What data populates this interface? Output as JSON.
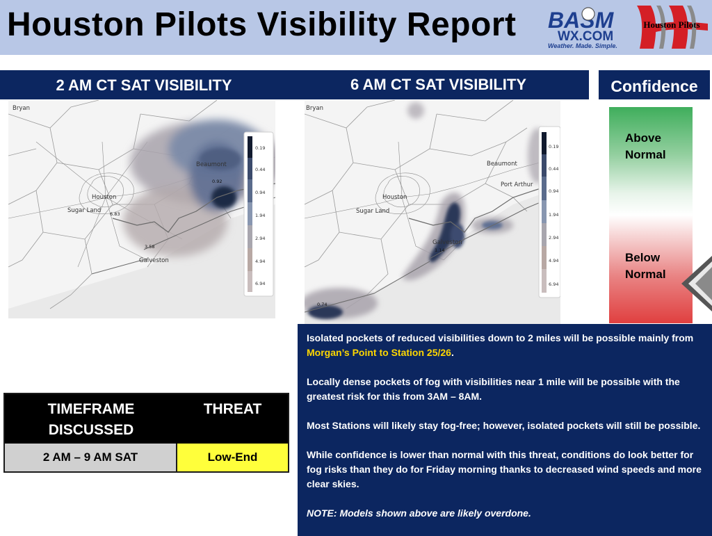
{
  "header": {
    "title": "Houston Pilots Visibility Report",
    "logos": {
      "basm_top": "BASM",
      "basm_sub": "WX.COM",
      "basm_tagline": "Weather. Made. Simple.",
      "hp": "Houston Pilots"
    }
  },
  "panels": {
    "left_title": "2 AM CT SAT VISIBILITY",
    "right_title": "6 AM CT SAT VISIBILITY"
  },
  "map_left": {
    "cities": [
      "Bryan",
      "Houston",
      "Sugar Land",
      "Galveston",
      "Beaumont"
    ],
    "point_values": [
      "6.83",
      "3.58",
      "0.92"
    ],
    "legend": [
      "0.19",
      "0.44",
      "0.94",
      "1.94",
      "2.94",
      "4.94",
      "6.94"
    ]
  },
  "map_right": {
    "cities": [
      "Bryan",
      "Houston",
      "Sugar Land",
      "Galveston",
      "Beaumont",
      "Port Arthur"
    ],
    "point_values": [
      "0.74",
      "1.14"
    ],
    "legend": [
      "0.19",
      "0.44",
      "0.94",
      "1.94",
      "2.94",
      "4.94",
      "6.94"
    ]
  },
  "legend_colors": [
    "#111a2e",
    "#3b4a6b",
    "#5a6b8c",
    "#8896b0",
    "#a8a6ae",
    "#b8a8a4",
    "#c9bdbd"
  ],
  "confidence": {
    "title": "Confidence",
    "above": [
      "Above",
      "Normal"
    ],
    "below": [
      "Below",
      "Normal"
    ]
  },
  "table": {
    "header_timeframe": [
      "TIMEFRAME",
      "DISCUSSED"
    ],
    "header_threat": "THREAT",
    "timeframe": "2 AM – 9 AM SAT",
    "threat": "Low-End",
    "colors": {
      "threat_bg": "#ffff3b",
      "timeframe_bg": "#d0d0d0"
    }
  },
  "notes": {
    "p1_before": "Isolated pockets of reduced visibilities down to 2 miles will be possible mainly from ",
    "p1_highlight": "Morgan’s Point to Station 25/26",
    "p1_after": ".",
    "p2": "Locally dense pockets of fog with visibilities near 1 mile will be possible with the greatest risk for this from 3AM – 8AM.",
    "p3": "Most Stations will likely stay fog-free; however, isolated pockets will still be possible.",
    "p4": "While confidence is lower than normal with this threat, conditions do look better for fog risks than they do for Friday morning thanks to decreased wind speeds and more clear skies.",
    "p5": "NOTE: Models shown above are likely overdone."
  },
  "colors": {
    "navy": "#0c2660",
    "header_bg": "#b8c7e6",
    "highlight": "#ffd700"
  }
}
